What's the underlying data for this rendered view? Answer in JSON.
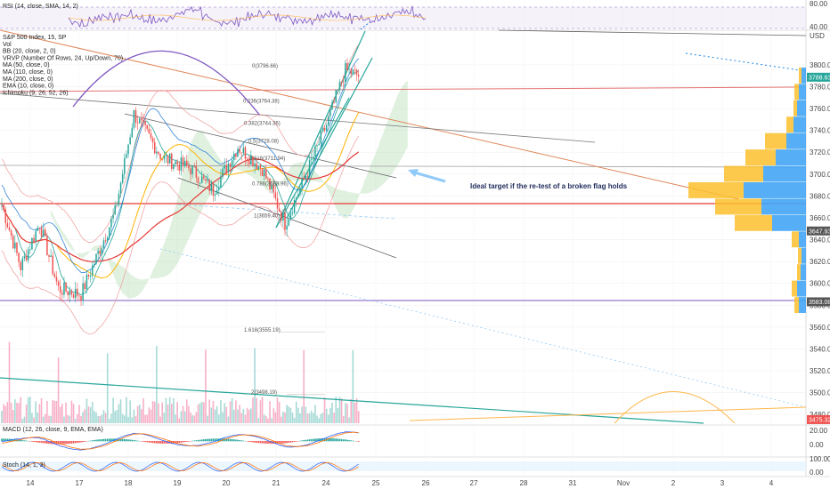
{
  "chart_data": {
    "type": "candlestick",
    "symbol": "S&P 500 Index, 15, SP",
    "legend_lines": [
      "S&P 500 Index, 15, SP",
      "Vol",
      "BB (20, close, 2, 0)",
      "VRVP (Number Of Rows, 24, Up/Down, 70)",
      "MA (50, close, 0)",
      "MA (110, close, 0)",
      "MA (200, close, 0)",
      "EMA (10, close, 0)",
      "Ichimoku (9, 26, 52, 26)"
    ],
    "main_yaxis": {
      "ticks": [
        3800,
        3780,
        3760,
        3740,
        3720,
        3700,
        3680,
        3660,
        3640,
        3620,
        3600,
        3580,
        3560,
        3540,
        3520,
        3500,
        3480
      ],
      "labels": [
        "3800.00",
        "3780.00",
        "3760.00",
        "3740.00",
        "3720.00",
        "3700.00",
        "3680.00",
        "3660.00",
        "3640.00",
        "3620.00",
        "3600.00",
        "3580.00",
        "3560.00",
        "3540.00",
        "3520.00",
        "3500.00",
        "3480.00"
      ],
      "range": [
        3472,
        3830
      ]
    },
    "price_tags": [
      {
        "value": 3788.63,
        "label": "3788.63",
        "color": "#26a69a"
      },
      {
        "value": 3647.93,
        "label": "3647.93",
        "color": "#555555"
      },
      {
        "value": 3583.08,
        "label": "3583.08",
        "color": "#555555"
      },
      {
        "value": 3475.32,
        "label": "3475.32",
        "color": "#ef5350"
      }
    ],
    "usd_label": "USD",
    "rsi": {
      "label": "RSI (14, close, SMA, 14, 2)",
      "ticks": [
        80,
        40
      ],
      "labels": [
        "80.00",
        "40.00"
      ]
    },
    "macd": {
      "label": "MACD (12, 26, close, 9, EMA, EMA)",
      "ticks": [
        20,
        0
      ],
      "labels": [
        "20.00",
        "0.00"
      ]
    },
    "stoch": {
      "label": "Stoch (14, 1, 3)",
      "ticks": [
        100,
        0
      ],
      "labels": [
        "100.00",
        "0.00"
      ]
    },
    "x_labels": [
      "14",
      "17",
      "18",
      "19",
      "20",
      "21",
      "24",
      "25",
      "26",
      "27",
      "28",
      "31",
      "Nov",
      "2",
      "3",
      "4"
    ],
    "fib_labels": [
      {
        "label": "0(3796.66)",
        "value": 3796.66
      },
      {
        "label": "0.236(3764.38)",
        "value": 3764.38
      },
      {
        "label": "0.382(3744.36)",
        "value": 3744.36
      },
      {
        "label": "0.5(3728.08)",
        "value": 3728.08
      },
      {
        "label": "0.618(3711.94)",
        "value": 3711.94
      },
      {
        "label": "0.786(3688.96)",
        "value": 3688.96
      },
      {
        "label": "1(3659.40)",
        "value": 3659.4
      },
      {
        "label": "1.618(3555.19)",
        "value": 3555.19
      },
      {
        "label": "2(3498.19)",
        "value": 3498.19
      }
    ],
    "annotation": "Ideal target if the re-test of a broken flag holds",
    "volume_profile": {
      "price_levels": [
        3790,
        3775,
        3760,
        3745,
        3730,
        3715,
        3700,
        3685,
        3670,
        3655,
        3640,
        3625,
        3610,
        3595,
        3580
      ],
      "up_volume": [
        3,
        5,
        4,
        8,
        24,
        34,
        44,
        62,
        52,
        42,
        8,
        4,
        4,
        6,
        5
      ],
      "down_volume": [
        5,
        8,
        10,
        14,
        22,
        34,
        48,
        70,
        50,
        38,
        8,
        5,
        6,
        10,
        8
      ]
    }
  }
}
